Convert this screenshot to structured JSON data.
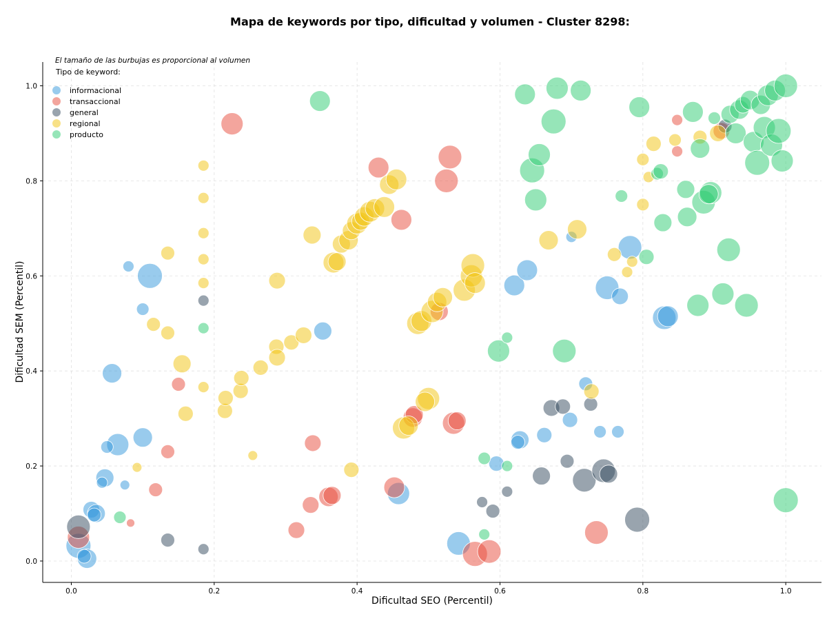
{
  "chart_data": {
    "type": "scatter",
    "title": "Mapa de keywords por tipo, dificultad y volumen - Cluster 8298:",
    "xlabel": "Dificultad SEO (Percentil)",
    "ylabel": "Dificultad SEM (Percentil)",
    "xlim": [
      -0.04,
      1.05
    ],
    "ylim": [
      -0.045,
      1.05
    ],
    "x_ticks": [
      "0.0",
      "0.2",
      "0.4",
      "0.6",
      "0.8",
      "1.0"
    ],
    "y_ticks": [
      "0.0",
      "0.2",
      "0.4",
      "0.6",
      "0.8",
      "1.0"
    ],
    "grid": true,
    "legend_placement": "top-left",
    "legend_title": "Tipo de keyword:",
    "note": "El tamaño de las burbujas es proporcional al volumen",
    "series": [
      {
        "name": "informacional",
        "color": "#3498db",
        "points": [
          [
            0.08,
            0.62,
            8
          ],
          [
            0.11,
            0.6,
            18
          ],
          [
            0.1,
            0.53,
            9
          ],
          [
            0.057,
            0.395,
            14
          ],
          [
            0.065,
            0.245,
            16
          ],
          [
            0.1,
            0.26,
            14
          ],
          [
            0.05,
            0.24,
            9
          ],
          [
            0.047,
            0.175,
            13
          ],
          [
            0.043,
            0.165,
            8
          ],
          [
            0.075,
            0.16,
            7
          ],
          [
            0.028,
            0.108,
            12
          ],
          [
            0.035,
            0.1,
            13
          ],
          [
            0.032,
            0.097,
            10
          ],
          [
            0.01,
            0.032,
            18
          ],
          [
            0.022,
            0.005,
            14
          ],
          [
            0.018,
            0.01,
            10
          ],
          [
            0.352,
            0.484,
            13
          ],
          [
            0.458,
            0.142,
            16
          ],
          [
            0.542,
            0.037,
            17
          ],
          [
            0.595,
            0.205,
            11
          ],
          [
            0.62,
            0.58,
            15
          ],
          [
            0.638,
            0.612,
            15
          ],
          [
            0.628,
            0.255,
            13
          ],
          [
            0.625,
            0.25,
            10
          ],
          [
            0.662,
            0.265,
            11
          ],
          [
            0.698,
            0.297,
            11
          ],
          [
            0.7,
            0.682,
            8
          ],
          [
            0.72,
            0.373,
            10
          ],
          [
            0.74,
            0.272,
            9
          ],
          [
            0.75,
            0.575,
            17
          ],
          [
            0.765,
            0.272,
            9
          ],
          [
            0.768,
            0.557,
            12
          ],
          [
            0.782,
            0.66,
            17
          ],
          [
            0.83,
            0.512,
            17
          ],
          [
            0.835,
            0.515,
            15
          ]
        ]
      },
      {
        "name": "transaccional",
        "color": "#e74c3c",
        "points": [
          [
            0.01,
            0.05,
            16
          ],
          [
            0.083,
            0.08,
            6
          ],
          [
            0.118,
            0.15,
            10
          ],
          [
            0.135,
            0.23,
            10
          ],
          [
            0.15,
            0.372,
            10
          ],
          [
            0.225,
            0.92,
            16
          ],
          [
            0.315,
            0.065,
            12
          ],
          [
            0.335,
            0.118,
            12
          ],
          [
            0.338,
            0.248,
            12
          ],
          [
            0.36,
            0.135,
            14
          ],
          [
            0.365,
            0.138,
            13
          ],
          [
            0.43,
            0.828,
            15
          ],
          [
            0.452,
            0.155,
            15
          ],
          [
            0.462,
            0.718,
            15
          ],
          [
            0.478,
            0.302,
            14
          ],
          [
            0.48,
            0.308,
            13
          ],
          [
            0.53,
            0.85,
            17
          ],
          [
            0.525,
            0.8,
            17
          ],
          [
            0.535,
            0.29,
            16
          ],
          [
            0.54,
            0.295,
            13
          ],
          [
            0.515,
            0.525,
            13
          ],
          [
            0.565,
            0.015,
            18
          ],
          [
            0.585,
            0.02,
            17
          ],
          [
            0.735,
            0.06,
            17
          ],
          [
            0.848,
            0.928,
            8
          ],
          [
            0.848,
            0.862,
            8
          ],
          [
            0.91,
            0.905,
            12
          ]
        ]
      },
      {
        "name": "general",
        "color": "#34495e",
        "points": [
          [
            0.01,
            0.072,
            17
          ],
          [
            0.135,
            0.044,
            10
          ],
          [
            0.185,
            0.025,
            8
          ],
          [
            0.185,
            0.548,
            8
          ],
          [
            0.575,
            0.124,
            8
          ],
          [
            0.59,
            0.105,
            10
          ],
          [
            0.61,
            0.146,
            8
          ],
          [
            0.658,
            0.179,
            13
          ],
          [
            0.672,
            0.322,
            12
          ],
          [
            0.688,
            0.325,
            11
          ],
          [
            0.694,
            0.21,
            10
          ],
          [
            0.718,
            0.17,
            17
          ],
          [
            0.727,
            0.33,
            10
          ],
          [
            0.745,
            0.19,
            17
          ],
          [
            0.752,
            0.183,
            13
          ],
          [
            0.792,
            0.087,
            18
          ],
          [
            0.915,
            0.915,
            10
          ]
        ]
      },
      {
        "name": "regional",
        "color": "#f1c40f",
        "points": [
          [
            0.092,
            0.197,
            7
          ],
          [
            0.115,
            0.498,
            10
          ],
          [
            0.135,
            0.648,
            10
          ],
          [
            0.135,
            0.48,
            10
          ],
          [
            0.155,
            0.415,
            13
          ],
          [
            0.16,
            0.31,
            11
          ],
          [
            0.185,
            0.832,
            8
          ],
          [
            0.185,
            0.764,
            8
          ],
          [
            0.185,
            0.69,
            8
          ],
          [
            0.185,
            0.635,
            8
          ],
          [
            0.185,
            0.585,
            8
          ],
          [
            0.185,
            0.366,
            8
          ],
          [
            0.215,
            0.316,
            11
          ],
          [
            0.216,
            0.343,
            11
          ],
          [
            0.237,
            0.358,
            11
          ],
          [
            0.238,
            0.385,
            11
          ],
          [
            0.254,
            0.222,
            7
          ],
          [
            0.265,
            0.407,
            11
          ],
          [
            0.287,
            0.451,
            11
          ],
          [
            0.288,
            0.428,
            12
          ],
          [
            0.288,
            0.59,
            12
          ],
          [
            0.308,
            0.46,
            11
          ],
          [
            0.325,
            0.475,
            12
          ],
          [
            0.337,
            0.686,
            13
          ],
          [
            0.367,
            0.628,
            15
          ],
          [
            0.372,
            0.63,
            13
          ],
          [
            0.378,
            0.667,
            13
          ],
          [
            0.388,
            0.675,
            14
          ],
          [
            0.392,
            0.695,
            13
          ],
          [
            0.4,
            0.71,
            15
          ],
          [
            0.405,
            0.715,
            13
          ],
          [
            0.41,
            0.725,
            14
          ],
          [
            0.418,
            0.735,
            15
          ],
          [
            0.425,
            0.742,
            14
          ],
          [
            0.438,
            0.745,
            15
          ],
          [
            0.445,
            0.792,
            14
          ],
          [
            0.455,
            0.803,
            15
          ],
          [
            0.392,
            0.192,
            11
          ],
          [
            0.465,
            0.28,
            16
          ],
          [
            0.472,
            0.285,
            14
          ],
          [
            0.485,
            0.5,
            16
          ],
          [
            0.49,
            0.505,
            15
          ],
          [
            0.5,
            0.342,
            16
          ],
          [
            0.495,
            0.335,
            14
          ],
          [
            0.505,
            0.525,
            16
          ],
          [
            0.512,
            0.545,
            14
          ],
          [
            0.52,
            0.555,
            14
          ],
          [
            0.55,
            0.57,
            16
          ],
          [
            0.56,
            0.6,
            16
          ],
          [
            0.562,
            0.622,
            17
          ],
          [
            0.565,
            0.585,
            15
          ],
          [
            0.668,
            0.675,
            14
          ],
          [
            0.708,
            0.698,
            14
          ],
          [
            0.728,
            0.357,
            11
          ],
          [
            0.76,
            0.645,
            10
          ],
          [
            0.778,
            0.608,
            8
          ],
          [
            0.785,
            0.63,
            8
          ],
          [
            0.8,
            0.845,
            9
          ],
          [
            0.8,
            0.75,
            9
          ],
          [
            0.808,
            0.808,
            8
          ],
          [
            0.815,
            0.878,
            11
          ],
          [
            0.845,
            0.886,
            9
          ],
          [
            0.88,
            0.892,
            10
          ],
          [
            0.905,
            0.9,
            12
          ]
        ]
      },
      {
        "name": "producto",
        "color": "#2ecc71",
        "points": [
          [
            0.068,
            0.092,
            9
          ],
          [
            0.185,
            0.49,
            8
          ],
          [
            0.348,
            0.968,
            15
          ],
          [
            0.578,
            0.056,
            8
          ],
          [
            0.578,
            0.216,
            9
          ],
          [
            0.598,
            0.442,
            16
          ],
          [
            0.61,
            0.47,
            8
          ],
          [
            0.61,
            0.2,
            8
          ],
          [
            0.635,
            0.982,
            15
          ],
          [
            0.645,
            0.822,
            18
          ],
          [
            0.65,
            0.76,
            16
          ],
          [
            0.655,
            0.855,
            16
          ],
          [
            0.675,
            0.925,
            18
          ],
          [
            0.68,
            0.995,
            16
          ],
          [
            0.69,
            0.442,
            17
          ],
          [
            0.713,
            0.99,
            15
          ],
          [
            0.77,
            0.768,
            9
          ],
          [
            0.795,
            0.955,
            15
          ],
          [
            0.805,
            0.64,
            11
          ],
          [
            0.82,
            0.815,
            9
          ],
          [
            0.825,
            0.82,
            11
          ],
          [
            0.828,
            0.712,
            13
          ],
          [
            0.86,
            0.782,
            13
          ],
          [
            0.862,
            0.724,
            14
          ],
          [
            0.87,
            0.945,
            15
          ],
          [
            0.88,
            0.868,
            14
          ],
          [
            0.877,
            0.538,
            16
          ],
          [
            0.885,
            0.755,
            17
          ],
          [
            0.895,
            0.775,
            16
          ],
          [
            0.892,
            0.772,
            14
          ],
          [
            0.9,
            0.932,
            9
          ],
          [
            0.92,
            0.655,
            17
          ],
          [
            0.912,
            0.562,
            16
          ],
          [
            0.922,
            0.94,
            13
          ],
          [
            0.93,
            0.9,
            15
          ],
          [
            0.935,
            0.95,
            14
          ],
          [
            0.94,
            0.96,
            12
          ],
          [
            0.945,
            0.538,
            17
          ],
          [
            0.95,
            0.97,
            14
          ],
          [
            0.955,
            0.882,
            15
          ],
          [
            0.96,
            0.838,
            18
          ],
          [
            0.965,
            0.96,
            14
          ],
          [
            0.97,
            0.912,
            16
          ],
          [
            0.975,
            0.98,
            15
          ],
          [
            0.98,
            0.875,
            16
          ],
          [
            0.985,
            0.99,
            15
          ],
          [
            0.99,
            0.905,
            18
          ],
          [
            0.995,
            0.842,
            16
          ],
          [
            1.0,
            1.0,
            17
          ],
          [
            1.0,
            0.128,
            18
          ]
        ]
      }
    ]
  }
}
